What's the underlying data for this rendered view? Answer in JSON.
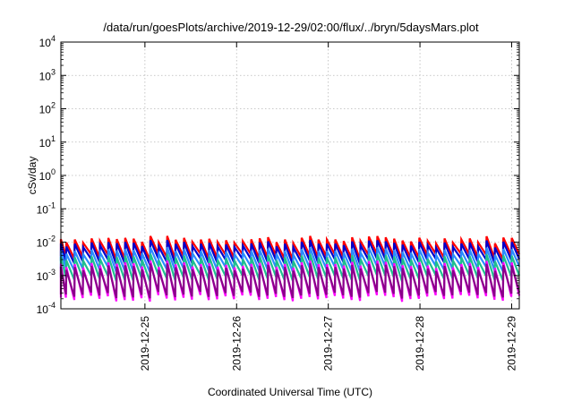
{
  "chart_data": {
    "type": "line",
    "title": "/data/run/goesPlots/archive/2019-12-29/02:00/flux/../bryn/5daysMars.plot",
    "xlabel": "Coordinated Universal Time (UTC)",
    "ylabel": "cSv/day",
    "x_range": [
      "2019-12-24 02:00",
      "2019-12-29 02:00"
    ],
    "x_ticks": [
      "2019-12-25",
      "2019-12-26",
      "2019-12-27",
      "2019-12-28",
      "2019-12-29"
    ],
    "y_scale": "log",
    "ylim": [
      0.0001,
      10000
    ],
    "y_ticks": [
      {
        "base": "10",
        "exp": "4"
      },
      {
        "base": "10",
        "exp": "3"
      },
      {
        "base": "10",
        "exp": "2"
      },
      {
        "base": "10",
        "exp": "1"
      },
      {
        "base": "10",
        "exp": "0"
      },
      {
        "base": "10",
        "exp": "-1"
      },
      {
        "base": "10",
        "exp": "-2"
      },
      {
        "base": "10",
        "exp": "-3"
      },
      {
        "base": "10",
        "exp": "-4"
      }
    ],
    "grid": true,
    "sawtooth_period_hours": 2.2,
    "series": [
      {
        "color": "#ff0000",
        "peak": 0.012,
        "trough": 0.0035
      },
      {
        "color": "#0000cc",
        "peak": 0.009,
        "trough": 0.0025
      },
      {
        "color": "#2a8cff",
        "peak": 0.0055,
        "trough": 0.0015
      },
      {
        "color": "#1fbf8f",
        "peak": 0.0035,
        "trough": 0.0008
      },
      {
        "color": "#ff00ff",
        "peak": 0.0022,
        "trough": 0.0002
      },
      {
        "color": "#8a008a",
        "peak": 0.0018,
        "trough": 0.00025
      }
    ]
  }
}
